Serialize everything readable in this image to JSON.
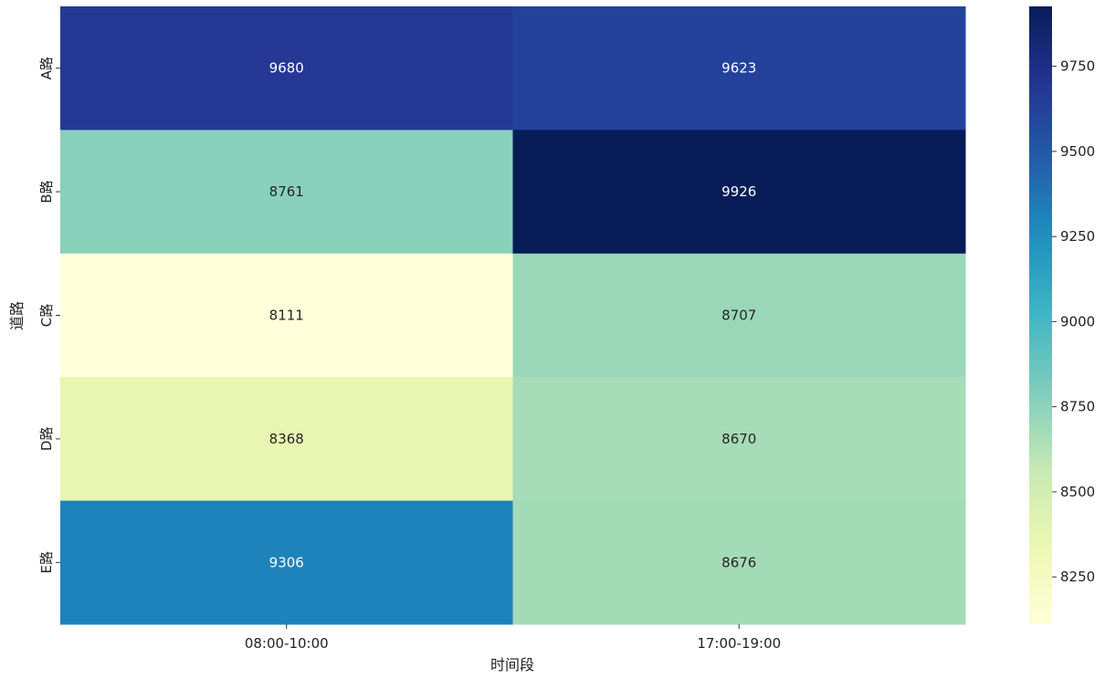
{
  "chart_data": {
    "type": "heatmap",
    "title": "",
    "xlabel": "时间段",
    "ylabel": "道路",
    "x_categories": [
      "08:00-10:00",
      "17:00-19:00"
    ],
    "y_categories": [
      "A路",
      "B路",
      "C路",
      "D路",
      "E路"
    ],
    "values": [
      [
        9680,
        9623
      ],
      [
        8761,
        9926
      ],
      [
        8111,
        8707
      ],
      [
        8368,
        8670
      ],
      [
        9306,
        8676
      ]
    ],
    "colorbar": {
      "colormap": "YlGnBu",
      "range": [
        8111,
        9926
      ],
      "ticks": [
        8250,
        8500,
        8750,
        9000,
        9250,
        9500,
        9750
      ]
    }
  }
}
